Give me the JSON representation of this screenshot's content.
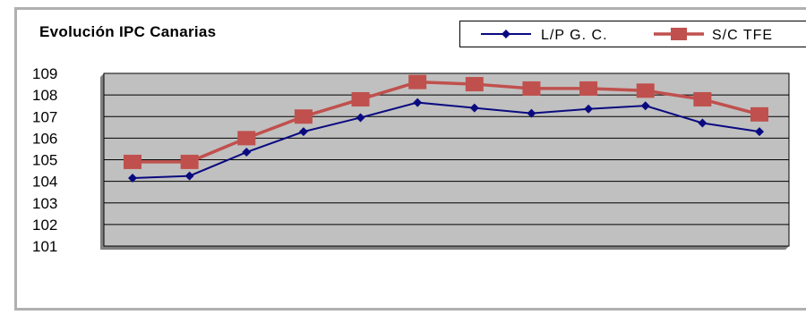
{
  "chart_data": {
    "type": "line",
    "title": "Evolución IPC Canarias",
    "xlabel": "",
    "ylabel": "",
    "x": [
      1,
      2,
      3,
      4,
      5,
      6,
      7,
      8,
      9,
      10,
      11,
      12
    ],
    "ylim": [
      101,
      109
    ],
    "yticks": [
      "101",
      "102",
      "103",
      "104",
      "105",
      "106",
      "107",
      "108",
      "109"
    ],
    "grid": true,
    "legend_position": "top-right",
    "series": [
      {
        "name": "L/P G. C.",
        "color": "#0a0a80",
        "marker": "diamond",
        "values": [
          104.15,
          104.25,
          105.35,
          106.3,
          106.95,
          107.65,
          107.4,
          107.15,
          107.35,
          107.5,
          106.7,
          106.3
        ]
      },
      {
        "name": "S/C TFE",
        "color": "#c0504d",
        "marker": "square",
        "values": [
          104.9,
          104.9,
          106.0,
          107.0,
          107.8,
          108.6,
          108.5,
          108.3,
          108.3,
          108.2,
          107.8,
          107.1
        ]
      }
    ]
  }
}
